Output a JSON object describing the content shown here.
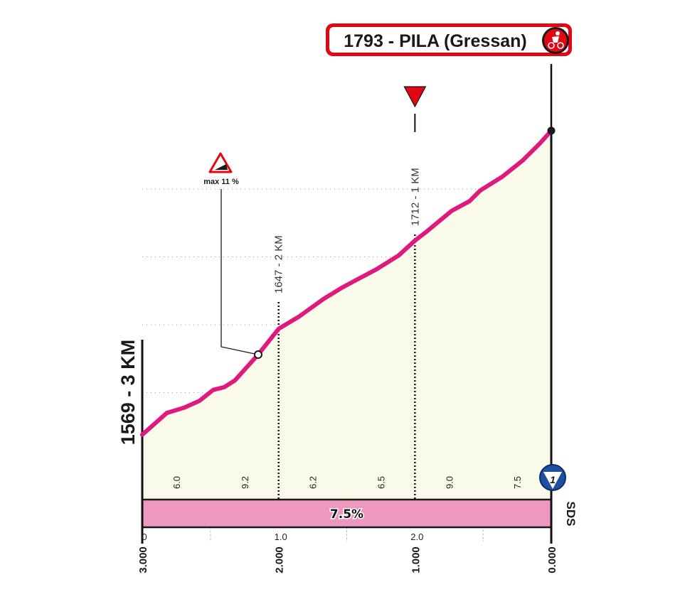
{
  "chart_data": {
    "type": "area",
    "title": "1793 - PILA (Gressan)",
    "start_label": "1569 - 3 KM",
    "x_unit": "km",
    "xlim": [
      0,
      3
    ],
    "ylim": [
      1550,
      1793
    ],
    "grid": true,
    "y_ticks": [
      1550,
      1600,
      1650,
      1700,
      1750
    ],
    "x_ticks_top": [
      {
        "km": 0,
        "label": "0"
      },
      {
        "km": 1,
        "label": "1.0"
      },
      {
        "km": 2,
        "label": "2.0"
      }
    ],
    "x_ticks_remaining": [
      {
        "km": 0,
        "label": "3.000"
      },
      {
        "km": 1,
        "label": "2.000"
      },
      {
        "km": 2,
        "label": "1.000"
      },
      {
        "km": 3,
        "label": "0.000"
      }
    ],
    "profile": {
      "x": [
        0,
        0.18,
        0.31,
        0.42,
        0.52,
        0.6,
        0.68,
        0.85,
        1.0,
        1.15,
        1.33,
        1.46,
        1.57,
        1.72,
        1.88,
        2.0,
        2.09,
        2.27,
        2.4,
        2.48,
        2.64,
        2.79,
        2.92,
        3.0
      ],
      "y": [
        1569,
        1585,
        1589,
        1594,
        1602,
        1604,
        1609,
        1628,
        1647,
        1656,
        1669,
        1677,
        1683,
        1691,
        1701,
        1712,
        1719,
        1734,
        1741,
        1749,
        1759,
        1771,
        1784,
        1793
      ]
    },
    "segment_gradients": [
      {
        "from": 0,
        "to": 0.5,
        "value": "6.0"
      },
      {
        "from": 0.5,
        "to": 1.0,
        "value": "9.2"
      },
      {
        "from": 1.0,
        "to": 1.5,
        "value": "6.2"
      },
      {
        "from": 1.5,
        "to": 2.0,
        "value": "6.5"
      },
      {
        "from": 2.0,
        "to": 2.5,
        "value": "9.0"
      },
      {
        "from": 2.5,
        "to": 3.0,
        "value": "7.5"
      }
    ],
    "average_gradient": "7.5%",
    "km_markers": [
      {
        "km": 1,
        "label": "1647 - 2 KM"
      },
      {
        "km": 2,
        "label": "1712 - 1 KM"
      }
    ],
    "max_gradient": {
      "km": 0.85,
      "label": "max 11 %"
    },
    "flamme_rouge_km": 2,
    "sponsor_label": "SDS",
    "sponsor_badge": "1",
    "colors": {
      "profile_line": "#e0197f",
      "area_fill": "#f9faea",
      "gradient_band": "#ee98c0",
      "title_border": "#e30613",
      "badge_blue": "#1e4fa0"
    }
  }
}
